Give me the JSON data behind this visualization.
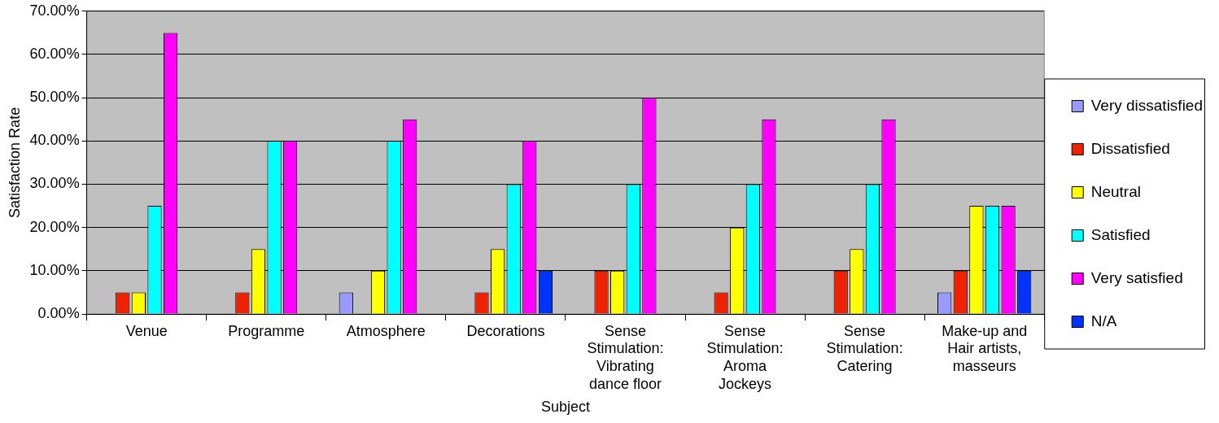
{
  "chart_data": {
    "type": "bar",
    "xlabel": "Subject",
    "ylabel": "Satisfaction Rate",
    "categories": [
      "Venue",
      "Programme",
      "Atmosphere",
      "Decorations",
      "Sense Stimulation: Vibrating dance floor",
      "Sense Stimulation: Aroma Jockeys",
      "Sense Stimulation: Catering",
      "Make-up and Hair artists, masseurs"
    ],
    "series": [
      {
        "name": "Very dissatisfied",
        "color": "#9999ff",
        "values": [
          0,
          0,
          5,
          0,
          0,
          0,
          0,
          5
        ]
      },
      {
        "name": "Dissatisfied",
        "color": "#ee2200",
        "values": [
          5,
          5,
          0,
          5,
          10,
          5,
          10,
          10
        ]
      },
      {
        "name": "Neutral",
        "color": "#ffff00",
        "values": [
          5,
          15,
          10,
          15,
          10,
          20,
          15,
          25
        ]
      },
      {
        "name": "Satisfied",
        "color": "#00ffff",
        "values": [
          25,
          40,
          40,
          30,
          30,
          30,
          30,
          25
        ]
      },
      {
        "name": "Very satisfied",
        "color": "#ff00ff",
        "values": [
          65,
          40,
          45,
          40,
          50,
          45,
          45,
          25
        ]
      },
      {
        "name": "N/A",
        "color": "#0033ff",
        "values": [
          0,
          0,
          0,
          10,
          0,
          0,
          0,
          10
        ]
      }
    ],
    "ylim": [
      0,
      70
    ],
    "yticks": [
      {
        "value": 0,
        "label": "0.00%"
      },
      {
        "value": 10,
        "label": "10.00%"
      },
      {
        "value": 20,
        "label": "20.00%"
      },
      {
        "value": 30,
        "label": "30.00%"
      },
      {
        "value": 40,
        "label": "40.00%"
      },
      {
        "value": 50,
        "label": "50.00%"
      },
      {
        "value": 60,
        "label": "60.00%"
      },
      {
        "value": 70,
        "label": "70.00%"
      }
    ],
    "grid": "y",
    "legend": "right"
  }
}
